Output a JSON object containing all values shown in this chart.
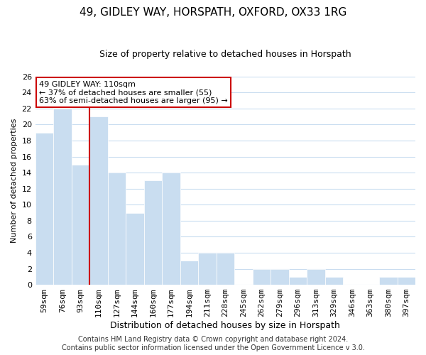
{
  "title": "49, GIDLEY WAY, HORSPATH, OXFORD, OX33 1RG",
  "subtitle": "Size of property relative to detached houses in Horspath",
  "xlabel": "Distribution of detached houses by size in Horspath",
  "ylabel": "Number of detached properties",
  "bin_labels": [
    "59sqm",
    "76sqm",
    "93sqm",
    "110sqm",
    "127sqm",
    "144sqm",
    "160sqm",
    "177sqm",
    "194sqm",
    "211sqm",
    "228sqm",
    "245sqm",
    "262sqm",
    "279sqm",
    "296sqm",
    "313sqm",
    "329sqm",
    "346sqm",
    "363sqm",
    "380sqm",
    "397sqm"
  ],
  "bar_heights": [
    19,
    22,
    15,
    21,
    14,
    9,
    13,
    14,
    3,
    4,
    4,
    0,
    2,
    2,
    1,
    2,
    1,
    0,
    0,
    1,
    1
  ],
  "bar_color": "#c9ddf0",
  "bar_edge_color": "#ffffff",
  "highlight_bar_index": 3,
  "highlight_color": "#cc0000",
  "ylim": [
    0,
    26
  ],
  "yticks": [
    0,
    2,
    4,
    6,
    8,
    10,
    12,
    14,
    16,
    18,
    20,
    22,
    24,
    26
  ],
  "annotation_line1": "49 GIDLEY WAY: 110sqm",
  "annotation_line2": "← 37% of detached houses are smaller (55)",
  "annotation_line3": "63% of semi-detached houses are larger (95) →",
  "annotation_box_color": "#ffffff",
  "annotation_box_edge": "#cc0000",
  "footer_line1": "Contains HM Land Registry data © Crown copyright and database right 2024.",
  "footer_line2": "Contains public sector information licensed under the Open Government Licence v 3.0.",
  "background_color": "#ffffff",
  "grid_color": "#c9ddf0",
  "title_fontsize": 11,
  "subtitle_fontsize": 9,
  "ylabel_fontsize": 8,
  "xlabel_fontsize": 9,
  "tick_fontsize": 8,
  "footer_fontsize": 7
}
